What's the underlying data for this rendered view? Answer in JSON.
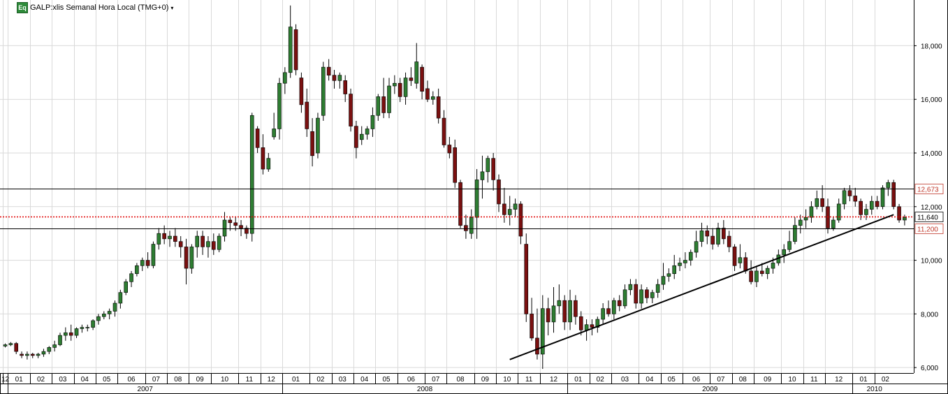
{
  "header": {
    "badge": "Eq",
    "title": "GALP:xlis Semanal Hora Local (TMG+0)",
    "dropdown_icon": "chevron-down-icon"
  },
  "chart_data": {
    "type": "candlestick",
    "y_ticks": [
      "6,000",
      "8,000",
      "10,000",
      "12,000",
      "14,000",
      "16,000",
      "18,000"
    ],
    "y_tick_values": [
      6,
      8,
      10,
      12,
      14,
      16,
      18
    ],
    "ylim": [
      5.9,
      19.6
    ],
    "month_labels": [
      {
        "label": "12",
        "from": 0,
        "to": 1
      },
      {
        "label": "01",
        "from": 1,
        "to": 5
      },
      {
        "label": "02",
        "from": 5,
        "to": 9
      },
      {
        "label": "03",
        "from": 9,
        "to": 13
      },
      {
        "label": "04",
        "from": 13,
        "to": 17
      },
      {
        "label": "05",
        "from": 17,
        "to": 21
      },
      {
        "label": "06",
        "from": 21,
        "to": 26
      },
      {
        "label": "07",
        "from": 26,
        "to": 30
      },
      {
        "label": "08",
        "from": 30,
        "to": 34
      },
      {
        "label": "09",
        "from": 34,
        "to": 38
      },
      {
        "label": "10",
        "from": 38,
        "to": 43
      },
      {
        "label": "11",
        "from": 43,
        "to": 47
      },
      {
        "label": "12",
        "from": 47,
        "to": 51
      },
      {
        "label": "01",
        "from": 51,
        "to": 56
      },
      {
        "label": "02",
        "from": 56,
        "to": 60
      },
      {
        "label": "03",
        "from": 60,
        "to": 64
      },
      {
        "label": "04",
        "from": 64,
        "to": 68
      },
      {
        "label": "05",
        "from": 68,
        "to": 72
      },
      {
        "label": "06",
        "from": 72,
        "to": 77
      },
      {
        "label": "07",
        "from": 77,
        "to": 81
      },
      {
        "label": "08",
        "from": 81,
        "to": 86
      },
      {
        "label": "09",
        "from": 86,
        "to": 90
      },
      {
        "label": "10",
        "from": 90,
        "to": 94
      },
      {
        "label": "11",
        "from": 94,
        "to": 98
      },
      {
        "label": "12",
        "from": 98,
        "to": 103
      },
      {
        "label": "01",
        "from": 103,
        "to": 107
      },
      {
        "label": "02",
        "from": 107,
        "to": 111
      },
      {
        "label": "03",
        "from": 111,
        "to": 116
      },
      {
        "label": "04",
        "from": 116,
        "to": 120
      },
      {
        "label": "05",
        "from": 120,
        "to": 124
      },
      {
        "label": "06",
        "from": 124,
        "to": 129
      },
      {
        "label": "07",
        "from": 129,
        "to": 133
      },
      {
        "label": "08",
        "from": 133,
        "to": 137
      },
      {
        "label": "09",
        "from": 137,
        "to": 142
      },
      {
        "label": "10",
        "from": 142,
        "to": 146
      },
      {
        "label": "11",
        "from": 146,
        "to": 150
      },
      {
        "label": "12",
        "from": 150,
        "to": 155
      },
      {
        "label": "01",
        "from": 155,
        "to": 159
      },
      {
        "label": "02",
        "from": 159,
        "to": 163
      }
    ],
    "year_labels": [
      {
        "label": "2007",
        "from": 1,
        "to": 51
      },
      {
        "label": "2008",
        "from": 51,
        "to": 103
      },
      {
        "label": "2009",
        "from": 103,
        "to": 155
      },
      {
        "label": "2010",
        "from": 155,
        "to": 163
      }
    ],
    "candles": [
      [
        6.8,
        6.9,
        6.75,
        6.85
      ],
      [
        6.85,
        6.95,
        6.8,
        6.9
      ],
      [
        6.9,
        6.95,
        6.5,
        6.6
      ],
      [
        6.5,
        6.6,
        6.35,
        6.45
      ],
      [
        6.45,
        6.6,
        6.3,
        6.5
      ],
      [
        6.5,
        6.55,
        6.35,
        6.45
      ],
      [
        6.45,
        6.55,
        6.35,
        6.5
      ],
      [
        6.5,
        6.7,
        6.4,
        6.6
      ],
      [
        6.6,
        6.8,
        6.5,
        6.75
      ],
      [
        6.75,
        7.0,
        6.6,
        6.85
      ],
      [
        6.85,
        7.3,
        6.8,
        7.2
      ],
      [
        7.2,
        7.5,
        7.0,
        7.3
      ],
      [
        7.3,
        7.6,
        7.0,
        7.2
      ],
      [
        7.2,
        7.5,
        7.1,
        7.45
      ],
      [
        7.45,
        7.6,
        7.3,
        7.5
      ],
      [
        7.5,
        7.6,
        7.35,
        7.5
      ],
      [
        7.5,
        7.8,
        7.4,
        7.75
      ],
      [
        7.75,
        8.0,
        7.6,
        7.9
      ],
      [
        7.9,
        8.1,
        7.8,
        8.0
      ],
      [
        8.0,
        8.2,
        7.8,
        8.1
      ],
      [
        8.1,
        8.5,
        7.9,
        8.4
      ],
      [
        8.4,
        8.9,
        8.2,
        8.8
      ],
      [
        8.8,
        9.3,
        8.7,
        9.2
      ],
      [
        9.2,
        9.6,
        9.0,
        9.5
      ],
      [
        9.5,
        9.9,
        9.4,
        9.8
      ],
      [
        9.8,
        10.1,
        9.6,
        10.0
      ],
      [
        10.0,
        10.3,
        9.7,
        9.8
      ],
      [
        9.8,
        10.7,
        9.7,
        10.6
      ],
      [
        10.6,
        11.2,
        10.4,
        11.0
      ],
      [
        11.0,
        11.3,
        10.6,
        10.8
      ],
      [
        10.8,
        11.1,
        10.5,
        10.9
      ],
      [
        10.9,
        11.2,
        10.5,
        10.7
      ],
      [
        10.7,
        10.9,
        10.1,
        10.5
      ],
      [
        10.5,
        10.8,
        9.1,
        9.7
      ],
      [
        9.7,
        10.6,
        9.5,
        10.5
      ],
      [
        10.5,
        11.1,
        10.1,
        10.9
      ],
      [
        10.9,
        11.1,
        10.2,
        10.5
      ],
      [
        10.5,
        10.9,
        10.1,
        10.7
      ],
      [
        10.7,
        11.0,
        10.2,
        10.4
      ],
      [
        10.4,
        11.0,
        10.3,
        10.9
      ],
      [
        10.9,
        11.8,
        10.7,
        11.5
      ],
      [
        11.5,
        11.6,
        11.1,
        11.4
      ],
      [
        11.4,
        11.6,
        11.1,
        11.3
      ],
      [
        11.3,
        11.5,
        10.9,
        11.2
      ],
      [
        11.2,
        11.3,
        10.8,
        11.0
      ],
      [
        11.0,
        15.5,
        10.7,
        15.4
      ],
      [
        14.9,
        15.0,
        14.0,
        14.2
      ],
      [
        14.2,
        14.7,
        13.2,
        13.4
      ],
      [
        13.4,
        14.0,
        13.3,
        13.8
      ],
      [
        14.6,
        15.5,
        14.5,
        14.9
      ],
      [
        14.9,
        16.8,
        14.5,
        16.6
      ],
      [
        16.6,
        17.2,
        16.2,
        17.0
      ],
      [
        17.0,
        19.5,
        16.8,
        18.7
      ],
      [
        18.6,
        18.8,
        16.9,
        17.1
      ],
      [
        16.8,
        17.0,
        15.5,
        15.8
      ],
      [
        15.9,
        16.4,
        14.6,
        14.9
      ],
      [
        14.8,
        15.3,
        13.5,
        13.9
      ],
      [
        14.0,
        15.5,
        13.8,
        15.3
      ],
      [
        15.4,
        17.4,
        15.2,
        17.2
      ],
      [
        17.2,
        17.5,
        16.7,
        16.9
      ],
      [
        16.9,
        17.1,
        16.4,
        16.7
      ],
      [
        16.7,
        17.0,
        16.4,
        16.9
      ],
      [
        16.7,
        16.9,
        15.9,
        16.2
      ],
      [
        16.2,
        16.4,
        14.8,
        15.0
      ],
      [
        15.0,
        15.2,
        13.8,
        14.2
      ],
      [
        14.5,
        15.0,
        14.3,
        14.7
      ],
      [
        14.7,
        15.0,
        14.5,
        14.9
      ],
      [
        14.9,
        15.7,
        14.6,
        15.4
      ],
      [
        15.4,
        16.2,
        15.2,
        16.1
      ],
      [
        16.1,
        16.8,
        15.3,
        15.5
      ],
      [
        15.5,
        16.8,
        15.3,
        16.5
      ],
      [
        16.5,
        16.9,
        16.2,
        16.6
      ],
      [
        16.6,
        16.8,
        15.9,
        16.1
      ],
      [
        16.1,
        17.0,
        15.8,
        16.8
      ],
      [
        16.8,
        17.2,
        16.5,
        16.7
      ],
      [
        16.6,
        18.1,
        16.4,
        17.4
      ],
      [
        17.2,
        17.3,
        16.0,
        16.3
      ],
      [
        16.4,
        16.7,
        15.9,
        16.0
      ],
      [
        16.0,
        16.3,
        15.8,
        16.1
      ],
      [
        16.1,
        16.4,
        15.1,
        15.3
      ],
      [
        15.3,
        15.6,
        14.2,
        14.3
      ],
      [
        14.3,
        14.6,
        13.8,
        14.0
      ],
      [
        14.2,
        14.5,
        12.7,
        12.9
      ],
      [
        12.9,
        13.0,
        11.2,
        11.3
      ],
      [
        11.3,
        11.7,
        10.8,
        11.1
      ],
      [
        11.0,
        11.9,
        10.8,
        11.6
      ],
      [
        11.6,
        13.4,
        10.8,
        13.0
      ],
      [
        13.0,
        13.9,
        12.3,
        13.3
      ],
      [
        13.3,
        13.9,
        12.9,
        13.8
      ],
      [
        13.8,
        14.0,
        12.6,
        13.0
      ],
      [
        13.0,
        13.2,
        11.8,
        12.1
      ],
      [
        12.1,
        12.7,
        11.4,
        11.7
      ],
      [
        11.7,
        12.4,
        11.3,
        11.9
      ],
      [
        11.9,
        12.3,
        11.6,
        12.1
      ],
      [
        12.1,
        12.2,
        10.6,
        10.9
      ],
      [
        10.6,
        11.0,
        7.7,
        8.0
      ],
      [
        8.0,
        8.6,
        7.0,
        7.1
      ],
      [
        7.1,
        8.2,
        6.3,
        6.5
      ],
      [
        6.5,
        8.7,
        5.95,
        8.2
      ],
      [
        8.2,
        8.6,
        7.2,
        7.7
      ],
      [
        7.7,
        9.0,
        7.3,
        8.3
      ],
      [
        8.3,
        9.1,
        8.0,
        8.5
      ],
      [
        8.5,
        8.7,
        7.4,
        7.7
      ],
      [
        7.7,
        8.9,
        7.4,
        8.5
      ],
      [
        8.5,
        8.7,
        7.6,
        7.9
      ],
      [
        7.9,
        8.1,
        7.2,
        7.4
      ],
      [
        7.4,
        7.8,
        7.0,
        7.6
      ],
      [
        7.6,
        7.8,
        7.2,
        7.5
      ],
      [
        7.5,
        7.9,
        7.3,
        7.8
      ],
      [
        7.8,
        8.4,
        7.6,
        8.2
      ],
      [
        8.2,
        8.5,
        7.9,
        8.0
      ],
      [
        8.0,
        8.6,
        7.8,
        8.5
      ],
      [
        8.5,
        8.7,
        8.1,
        8.3
      ],
      [
        8.3,
        9.1,
        8.2,
        8.9
      ],
      [
        8.9,
        9.3,
        8.7,
        9.1
      ],
      [
        9.1,
        9.3,
        8.2,
        8.4
      ],
      [
        8.4,
        9.1,
        8.2,
        8.9
      ],
      [
        8.9,
        9.0,
        8.4,
        8.6
      ],
      [
        8.6,
        8.9,
        8.4,
        8.8
      ],
      [
        8.8,
        9.3,
        8.6,
        9.1
      ],
      [
        9.1,
        9.9,
        8.9,
        9.4
      ],
      [
        9.4,
        9.7,
        9.2,
        9.5
      ],
      [
        9.5,
        10.2,
        9.3,
        9.8
      ],
      [
        9.8,
        10.1,
        9.6,
        9.9
      ],
      [
        9.9,
        10.3,
        9.7,
        10.0
      ],
      [
        10.0,
        10.4,
        9.8,
        10.3
      ],
      [
        10.3,
        11.1,
        10.1,
        10.7
      ],
      [
        10.7,
        11.4,
        10.5,
        11.1
      ],
      [
        11.1,
        11.3,
        10.6,
        10.9
      ],
      [
        10.9,
        11.2,
        10.4,
        10.6
      ],
      [
        10.6,
        11.4,
        10.5,
        11.2
      ],
      [
        11.2,
        11.5,
        10.6,
        10.8
      ],
      [
        10.9,
        11.1,
        10.3,
        10.5
      ],
      [
        10.5,
        10.6,
        9.6,
        9.8
      ],
      [
        9.9,
        10.6,
        9.7,
        10.1
      ],
      [
        10.1,
        10.3,
        9.5,
        9.6
      ],
      [
        9.6,
        10.0,
        9.1,
        9.2
      ],
      [
        9.2,
        9.8,
        9.0,
        9.6
      ],
      [
        9.6,
        9.9,
        9.4,
        9.5
      ],
      [
        9.5,
        9.8,
        9.3,
        9.7
      ],
      [
        9.7,
        10.1,
        9.5,
        9.9
      ],
      [
        9.9,
        10.4,
        9.8,
        10.2
      ],
      [
        10.2,
        10.6,
        9.9,
        10.4
      ],
      [
        10.4,
        11.1,
        10.3,
        10.7
      ],
      [
        10.7,
        11.6,
        10.6,
        11.3
      ],
      [
        11.3,
        11.7,
        11.0,
        11.5
      ],
      [
        11.5,
        11.9,
        11.2,
        11.6
      ],
      [
        11.6,
        12.2,
        11.4,
        12.0
      ],
      [
        12.0,
        12.6,
        11.9,
        12.3
      ],
      [
        12.3,
        12.8,
        11.8,
        12.0
      ],
      [
        12.0,
        12.3,
        11.0,
        11.2
      ],
      [
        11.2,
        11.6,
        11.1,
        11.5
      ],
      [
        11.5,
        12.3,
        11.4,
        12.1
      ],
      [
        12.1,
        12.7,
        11.9,
        12.6
      ],
      [
        12.6,
        12.8,
        12.2,
        12.4
      ],
      [
        12.4,
        12.7,
        12.0,
        12.2
      ],
      [
        12.2,
        12.3,
        11.5,
        11.7
      ],
      [
        11.7,
        12.1,
        11.5,
        11.9
      ],
      [
        11.9,
        12.4,
        11.7,
        12.2
      ],
      [
        12.2,
        12.4,
        11.9,
        12.0
      ],
      [
        12.0,
        12.8,
        11.9,
        12.7
      ],
      [
        12.7,
        13.0,
        12.4,
        12.9
      ],
      [
        12.9,
        13.0,
        11.9,
        12.0
      ],
      [
        12.0,
        12.1,
        11.4,
        11.5
      ],
      [
        11.5,
        11.7,
        11.3,
        11.6
      ]
    ],
    "horizontal_lines": [
      {
        "value": 12.673,
        "label": "12,673",
        "style": "solid",
        "color": "#000000",
        "label_color": "#c0392b"
      },
      {
        "value": 11.64,
        "label": "11,640",
        "style": "dotted",
        "color": "#e00000",
        "label_color": "#000000"
      },
      {
        "value": 11.2,
        "label": "11,200",
        "style": "solid",
        "color": "#000000",
        "label_color": "#c0392b"
      }
    ],
    "trendline": {
      "from": {
        "index": 92.0,
        "value": 6.3
      },
      "to": {
        "index": 162.0,
        "value": 11.7
      }
    },
    "colors": {
      "up": "#2e7d32",
      "down": "#7a1010",
      "grid": "#d9d9d9",
      "axis": "#000000"
    }
  }
}
